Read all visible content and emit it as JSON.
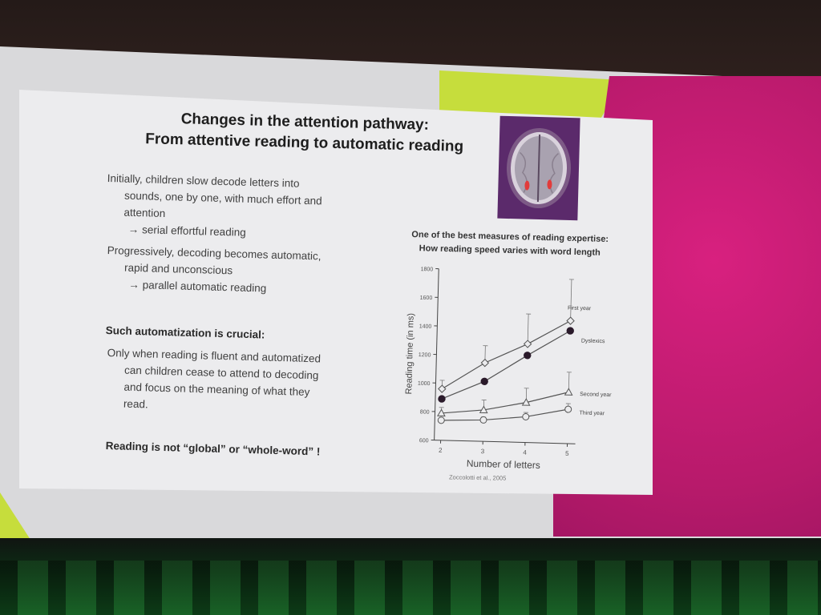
{
  "slide": {
    "title_line1": "Changes in the attention pathway:",
    "title_line2": "From attentive reading to automatic reading",
    "para1_line1": "Initially, children slow decode letters into",
    "para1_line2": "sounds, one by one, with much effort and",
    "para1_line3": "attention",
    "para1_arrow": "→ serial effortful reading",
    "para2_line1": "Progressively, decoding becomes automatic,",
    "para2_line2": "rapid and unconscious",
    "para2_arrow": "→ parallel automatic reading",
    "heading_crucial": "Such automatization is crucial:",
    "para3_line1": "Only when reading is fluent and automatized",
    "para3_line2": "can children cease to attend to decoding",
    "para3_line3": "and focus on the meaning of what they",
    "para3_line4": "read.",
    "conclusion": "Reading is not “global” or “whole-word” !",
    "chart_caption_line1": "One of the best measures of reading expertise:",
    "chart_caption_line2": "How reading speed varies with word length",
    "citation": "Zoccolotti et al., 2005"
  },
  "chart_data": {
    "type": "line",
    "xlabel": "Number of letters",
    "ylabel": "Reading time (in ms)",
    "x": [
      2,
      3,
      4,
      5
    ],
    "ylim": [
      600,
      1800
    ],
    "y_ticks": [
      "600",
      "800",
      "1000",
      "1200",
      "1400",
      "1600",
      "1800"
    ],
    "x_ticks": [
      "2",
      "3",
      "4",
      "5"
    ],
    "series": [
      {
        "name": "First year",
        "values": [
          960,
          1150,
          1290,
          1460
        ],
        "errors": [
          60,
          120,
          210,
          290
        ],
        "marker": "open-diamond"
      },
      {
        "name": "Dyslexics",
        "values": [
          890,
          1020,
          1210,
          1390
        ],
        "errors": [
          0,
          0,
          0,
          0
        ],
        "marker": "filled-circle"
      },
      {
        "name": "Second year",
        "values": [
          790,
          820,
          880,
          960
        ],
        "errors": [
          40,
          70,
          100,
          140
        ],
        "marker": "open-triangle"
      },
      {
        "name": "Third year",
        "values": [
          740,
          750,
          780,
          840
        ],
        "errors": [
          0,
          20,
          30,
          40
        ],
        "marker": "open-circle"
      }
    ]
  }
}
